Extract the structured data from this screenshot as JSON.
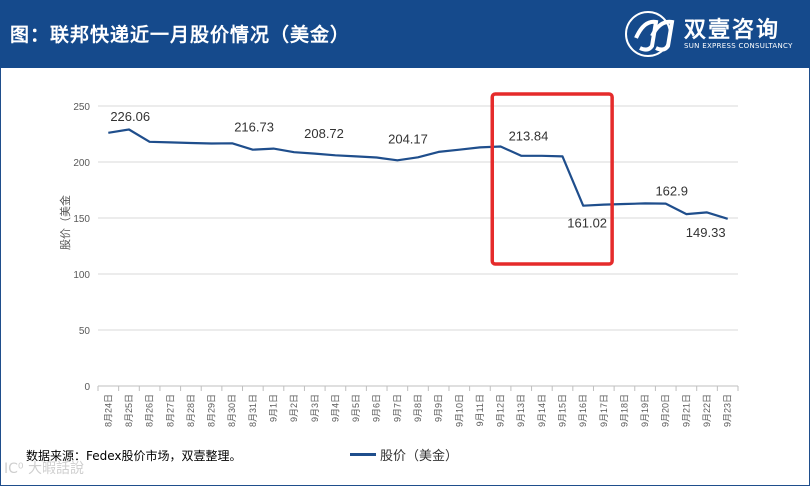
{
  "header": {
    "title": "图：联邦快递近一月股价情况（美金）",
    "logo_name": "双壹咨询",
    "logo_sub": "SUN EXPRESS CONSULTANCY",
    "header_color": "#154a8c"
  },
  "footer": {
    "source": "数据来源：Fedex股价市场，双壹整理。",
    "watermark": "IC⁰ 大暇話說"
  },
  "chart_data": {
    "type": "line",
    "title": "",
    "xlabel": "",
    "ylabel": "股价（美金",
    "ylim": [
      0,
      250
    ],
    "yticks": [
      0,
      50,
      100,
      150,
      200,
      250
    ],
    "grid": true,
    "legend_position": "bottom",
    "line_color": "#1f4e8c",
    "highlight_color": "#e52b2b",
    "categories": [
      "8月24日",
      "8月25日",
      "8月26日",
      "8月27日",
      "8月28日",
      "8月29日",
      "8月30日",
      "8月31日",
      "9月1日",
      "9月2日",
      "9月3日",
      "9月4日",
      "9月5日",
      "9月6日",
      "9月7日",
      "9月8日",
      "9月9日",
      "9月10日",
      "9月11日",
      "9月12日",
      "9月13日",
      "9月14日",
      "9月15日",
      "9月16日",
      "9月17日",
      "9月18日",
      "9月19日",
      "9月20日",
      "9月21日",
      "9月22日",
      "9月23日"
    ],
    "series": [
      {
        "name": "股价（美金）",
        "values": [
          226.06,
          229,
          218,
          217.5,
          217,
          216.5,
          216.73,
          211,
          212,
          208.72,
          207.5,
          206,
          205,
          204,
          201.5,
          204.17,
          209,
          211,
          213,
          213.84,
          205.5,
          205.5,
          205,
          161.02,
          162,
          162.5,
          163,
          162.9,
          153.5,
          155,
          149.33
        ]
      }
    ],
    "annotations": [
      {
        "label": "226.06",
        "x": "8月24日",
        "y": 226.06
      },
      {
        "label": "216.73",
        "x": "8月30日",
        "y": 216.73
      },
      {
        "label": "208.72",
        "x": "9月2日",
        "y": 208.72
      },
      {
        "label": "204.17",
        "x": "9月8日",
        "y": 204.17
      },
      {
        "label": "213.84",
        "x": "9月12日",
        "y": 213.84
      },
      {
        "label": "161.02",
        "x": "9月16日",
        "y": 161.02
      },
      {
        "label": "162.9",
        "x": "9月20日",
        "y": 162.9
      },
      {
        "label": "149.33",
        "x": "9月23日",
        "y": 149.33
      }
    ],
    "highlight_range": [
      "9月12日",
      "9月17日"
    ]
  }
}
